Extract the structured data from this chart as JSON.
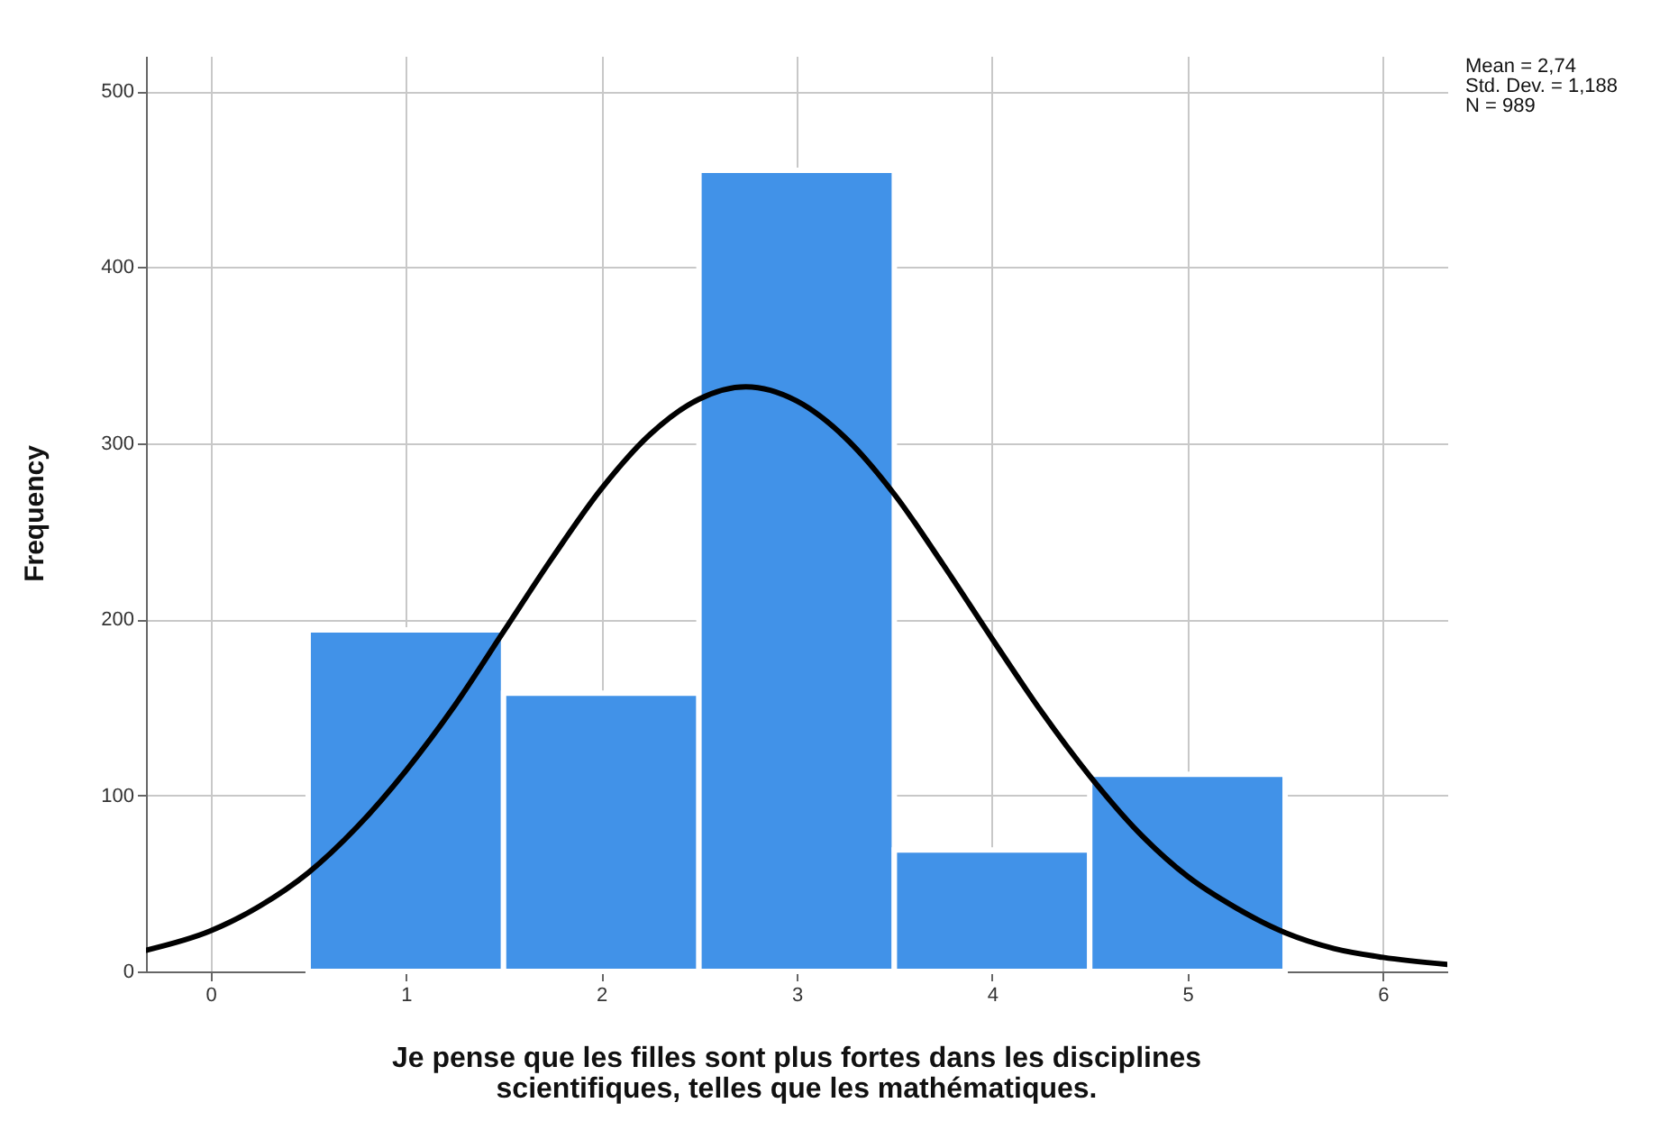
{
  "chart_data": {
    "type": "histogram",
    "xlabel": "Je pense que les filles sont plus fortes dans les disciplines scientifiques, telles que les mathématiques.",
    "ylabel": "Frequency",
    "annotations": [
      "Mean = 2,74",
      "Std. Dev. = 1,188",
      "N = 989"
    ],
    "bins": [
      0.5,
      1.5,
      2.5,
      3.5,
      4.5,
      5.5
    ],
    "series": [
      {
        "color": "#4192e8",
        "values": [
          194,
          158,
          455,
          69,
          112
        ]
      },
      {
        "type": "line",
        "color": "#000000",
        "x": [
          -0.33,
          0,
          0.25,
          0.5,
          0.75,
          1,
          1.25,
          1.5,
          1.75,
          2,
          2.25,
          2.5,
          2.74,
          3,
          3.25,
          3.5,
          3.75,
          4,
          4.25,
          4.5,
          4.75,
          5,
          5.25,
          5.5,
          5.75,
          6,
          6.33
        ],
        "values": [
          12,
          23,
          37,
          56,
          82,
          114,
          151,
          193,
          235,
          274,
          305,
          325,
          332,
          324,
          303,
          271,
          231,
          189,
          148,
          111,
          79,
          54,
          36,
          22,
          13,
          8,
          4
        ]
      }
    ],
    "xlim": [
      -0.33,
      6.33
    ],
    "xticks": [
      0,
      1,
      2,
      3,
      4,
      5,
      6
    ],
    "ylim": [
      0,
      520
    ],
    "yticks": [
      0,
      100,
      200,
      300,
      400,
      500
    ],
    "grid": true
  }
}
